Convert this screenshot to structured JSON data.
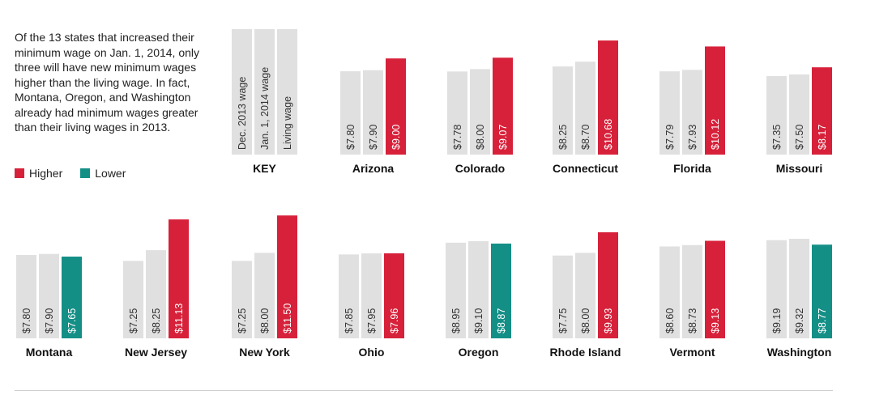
{
  "intro_text": "Of the 13 states that increased their minimum wage on Jan. 1, 2014, only three will have new minimum wages higher than the living wage. In fact, Montana, Oregon, and Washington already had minimum wages greater than their living wages in 2013.",
  "legend": {
    "higher_label": "Higher",
    "lower_label": "Lower",
    "higher_color": "#d7213a",
    "lower_color": "#148f86"
  },
  "colors": {
    "wage_bar": "#e0e0e0",
    "bar_text_dark": "#333333",
    "bar_text_light": "#ffffff"
  },
  "key": {
    "title": "KEY",
    "labels": [
      "Dec. 2013 wage",
      "Jan. 1, 2014 wage",
      "Living wage"
    ]
  },
  "chart_data": {
    "type": "bar",
    "series": [
      {
        "name": "Dec. 2013 wage"
      },
      {
        "name": "Jan. 1, 2014 wage"
      },
      {
        "name": "Living wage"
      }
    ],
    "states": [
      {
        "name": "Arizona",
        "values": [
          7.8,
          7.9,
          9.0
        ],
        "labels": [
          "$7.80",
          "$7.90",
          "$9.00"
        ],
        "living_vs_new": "higher"
      },
      {
        "name": "Colorado",
        "values": [
          7.78,
          8.0,
          9.07
        ],
        "labels": [
          "$7.78",
          "$8.00",
          "$9.07"
        ],
        "living_vs_new": "higher"
      },
      {
        "name": "Connecticut",
        "values": [
          8.25,
          8.7,
          10.68
        ],
        "labels": [
          "$8.25",
          "$8.70",
          "$10.68"
        ],
        "living_vs_new": "higher"
      },
      {
        "name": "Florida",
        "values": [
          7.79,
          7.93,
          10.12
        ],
        "labels": [
          "$7.79",
          "$7.93",
          "$10.12"
        ],
        "living_vs_new": "higher"
      },
      {
        "name": "Missouri",
        "values": [
          7.35,
          7.5,
          8.17
        ],
        "labels": [
          "$7.35",
          "$7.50",
          "$8.17"
        ],
        "living_vs_new": "higher"
      },
      {
        "name": "Montana",
        "values": [
          7.8,
          7.9,
          7.65
        ],
        "labels": [
          "$7.80",
          "$7.90",
          "$7.65"
        ],
        "living_vs_new": "lower"
      },
      {
        "name": "New Jersey",
        "values": [
          7.25,
          8.25,
          11.13
        ],
        "labels": [
          "$7.25",
          "$8.25",
          "$11.13"
        ],
        "living_vs_new": "higher"
      },
      {
        "name": "New York",
        "values": [
          7.25,
          8.0,
          11.5
        ],
        "labels": [
          "$7.25",
          "$8.00",
          "$11.50"
        ],
        "living_vs_new": "higher"
      },
      {
        "name": "Ohio",
        "values": [
          7.85,
          7.95,
          7.96
        ],
        "labels": [
          "$7.85",
          "$7.95",
          "$7.96"
        ],
        "living_vs_new": "higher"
      },
      {
        "name": "Oregon",
        "values": [
          8.95,
          9.1,
          8.87
        ],
        "labels": [
          "$8.95",
          "$9.10",
          "$8.87"
        ],
        "living_vs_new": "lower"
      },
      {
        "name": "Rhode Island",
        "values": [
          7.75,
          8.0,
          9.93
        ],
        "labels": [
          "$7.75",
          "$8.00",
          "$9.93"
        ],
        "living_vs_new": "higher"
      },
      {
        "name": "Vermont",
        "values": [
          8.6,
          8.73,
          9.13
        ],
        "labels": [
          "$8.60",
          "$8.73",
          "$9.13"
        ],
        "living_vs_new": "higher"
      },
      {
        "name": "Washington",
        "values": [
          9.19,
          9.32,
          8.77
        ],
        "labels": [
          "$9.19",
          "$9.32",
          "$8.77"
        ],
        "living_vs_new": "lower"
      }
    ]
  }
}
